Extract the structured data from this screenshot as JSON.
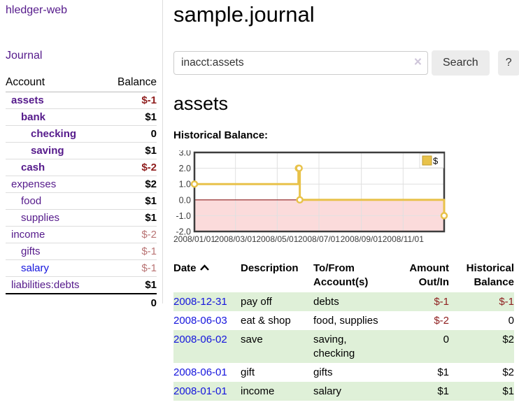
{
  "sidebar": {
    "brand": "hledger-web",
    "journal_link": "Journal",
    "col_account": "Account",
    "col_balance": "Balance",
    "accounts": [
      {
        "name": "assets",
        "balance": "$-1",
        "indent": 1,
        "bold": true,
        "unvisited": false
      },
      {
        "name": "bank",
        "balance": "$1",
        "indent": 2,
        "bold": true,
        "unvisited": false
      },
      {
        "name": "checking",
        "balance": "0",
        "indent": 3,
        "bold": true,
        "unvisited": false
      },
      {
        "name": "saving",
        "balance": "$1",
        "indent": 3,
        "bold": true,
        "unvisited": false
      },
      {
        "name": "cash",
        "balance": "$-2",
        "indent": 2,
        "bold": true,
        "unvisited": false
      },
      {
        "name": "expenses",
        "balance": "$2",
        "indent": 1,
        "bold": false,
        "unvisited": false
      },
      {
        "name": "food",
        "balance": "$1",
        "indent": 2,
        "bold": false,
        "unvisited": false
      },
      {
        "name": "supplies",
        "balance": "$1",
        "indent": 2,
        "bold": false,
        "unvisited": false
      },
      {
        "name": "income",
        "balance": "$-2",
        "indent": 1,
        "bold": false,
        "unvisited": false
      },
      {
        "name": "gifts",
        "balance": "$-1",
        "indent": 2,
        "bold": false,
        "unvisited": false
      },
      {
        "name": "salary",
        "balance": "$-1",
        "indent": 2,
        "bold": false,
        "unvisited": true
      },
      {
        "name": "liabilities:debts",
        "balance": "$1",
        "indent": 1,
        "bold": false,
        "unvisited": false
      }
    ],
    "total": "0"
  },
  "header": {
    "title": "sample.journal",
    "search": {
      "value": "inacct:assets",
      "clear_icon": "×",
      "search_button": "Search",
      "help_button": "?"
    }
  },
  "account_page": {
    "heading": "assets",
    "chart_title": "Historical Balance:"
  },
  "chart_data": {
    "type": "line",
    "step": true,
    "title": "Historical Balance:",
    "series": [
      {
        "name": "$",
        "color": "#e8c24a",
        "points": [
          [
            "2008-01-01",
            1
          ],
          [
            "2008-06-01",
            2
          ],
          [
            "2008-06-02",
            2
          ],
          [
            "2008-06-03",
            0
          ],
          [
            "2008-12-31",
            -1
          ]
        ]
      }
    ],
    "xrange": [
      "2008-01-01",
      "2008-12-31"
    ],
    "ylim": [
      -2,
      3
    ],
    "yticks": [
      [
        "3.0",
        3
      ],
      [
        "2.0",
        2
      ],
      [
        "1.0",
        1
      ],
      [
        "0.0",
        0
      ],
      [
        "-1.0",
        -1
      ],
      [
        "-2.0",
        -2
      ]
    ],
    "xticks": [
      "2008/01/01",
      "2008/03/01",
      "2008/05/01",
      "2008/07/01",
      "2008/09/01",
      "2008/11/01"
    ],
    "legend": {
      "label": "$",
      "position": "top-right"
    },
    "grid": true,
    "zero_line_color": "#8b1a1a",
    "negative_region_fill": "#fbdbdb"
  },
  "register": {
    "headers": {
      "date": "Date",
      "description": "Description",
      "accounts": "To/From Account(s)",
      "amount": "Amount Out/In",
      "balance": "Historical Balance"
    },
    "rows": [
      {
        "date": "2008-12-31",
        "description": "pay off",
        "accounts": "debts",
        "amount": "$-1",
        "balance": "$-1"
      },
      {
        "date": "2008-06-03",
        "description": "eat & shop",
        "accounts": "food, supplies",
        "amount": "$-2",
        "balance": "0"
      },
      {
        "date": "2008-06-02",
        "description": "save",
        "accounts": "saving, checking",
        "amount": "0",
        "balance": "$2"
      },
      {
        "date": "2008-06-01",
        "description": "gift",
        "accounts": "gifts",
        "amount": "$1",
        "balance": "$2"
      },
      {
        "date": "2008-01-01",
        "description": "income",
        "accounts": "salary",
        "amount": "$1",
        "balance": "$1"
      }
    ]
  }
}
